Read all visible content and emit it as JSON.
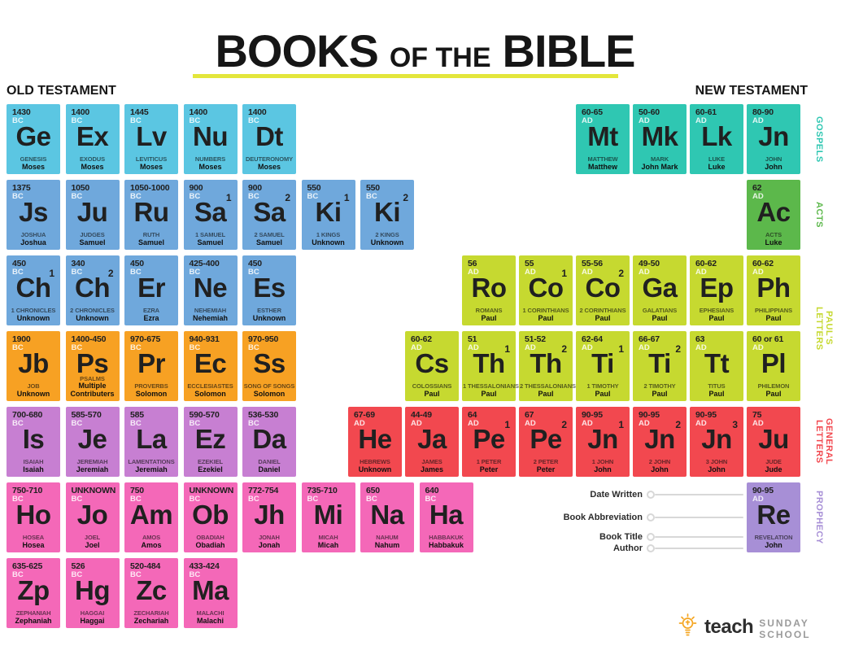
{
  "title": {
    "part1": "BOOKS",
    "part2": "OF THE",
    "part3": "BIBLE"
  },
  "headers": {
    "old": "OLD TESTAMENT",
    "new": "NEW TESTAMENT"
  },
  "palette": {
    "law_blue": "#5BC6E2",
    "history_blue": "#6FA8DC",
    "wisdom_orange": "#F7A123",
    "major_prophets_purple": "#C77FD2",
    "minor_prophets_pink": "#F468B8",
    "gospels_teal": "#2FC7B2",
    "acts_green": "#5CB84B",
    "pauls_letters_green": "#C6D930",
    "general_letters_red": "#F2484F",
    "prophecy_purple": "#A78FD6",
    "underline_yellow": "#E3E63B",
    "logo_orange": "#F5A623"
  },
  "categories": [
    {
      "lines": [
        "GOSPELS"
      ],
      "color": "gospels_teal",
      "row_start": 1,
      "row_end": 1
    },
    {
      "lines": [
        "ACTS"
      ],
      "color": "acts_green",
      "row_start": 2,
      "row_end": 2
    },
    {
      "lines": [
        "PAUL'S",
        "LETTERS"
      ],
      "color": "pauls_letters_green",
      "row_start": 3,
      "row_end": 4
    },
    {
      "lines": [
        "GENERAL",
        "LETTERS"
      ],
      "color": "general_letters_red",
      "row_start": 5,
      "row_end": 5
    },
    {
      "lines": [
        "PROPHECY"
      ],
      "color": "prophecy_purple",
      "row_start": 6,
      "row_end": 6
    }
  ],
  "tiles": [
    {
      "r": 1,
      "c": 1,
      "sec": "ot",
      "color": "law_blue",
      "date": "1430",
      "era": "BC",
      "ab": "Ge",
      "name": "GENESIS",
      "author": "Moses"
    },
    {
      "r": 1,
      "c": 2,
      "sec": "ot",
      "color": "law_blue",
      "date": "1400",
      "era": "BC",
      "ab": "Ex",
      "name": "EXODUS",
      "author": "Moses"
    },
    {
      "r": 1,
      "c": 3,
      "sec": "ot",
      "color": "law_blue",
      "date": "1445",
      "era": "BC",
      "ab": "Lv",
      "name": "LEVITICUS",
      "author": "Moses"
    },
    {
      "r": 1,
      "c": 4,
      "sec": "ot",
      "color": "law_blue",
      "date": "1400",
      "era": "BC",
      "ab": "Nu",
      "name": "NUMBERS",
      "author": "Moses"
    },
    {
      "r": 1,
      "c": 5,
      "sec": "ot",
      "color": "law_blue",
      "date": "1400",
      "era": "BC",
      "ab": "Dt",
      "name": "DEUTERONOMY",
      "author": "Moses"
    },
    {
      "r": 1,
      "c": 11,
      "sec": "nt",
      "color": "gospels_teal",
      "date": "60-65",
      "era": "AD",
      "ab": "Mt",
      "name": "MATTHEW",
      "author": "Matthew"
    },
    {
      "r": 1,
      "c": 12,
      "sec": "nt",
      "color": "gospels_teal",
      "date": "50-60",
      "era": "AD",
      "ab": "Mk",
      "name": "MARK",
      "author": "John Mark"
    },
    {
      "r": 1,
      "c": 13,
      "sec": "nt",
      "color": "gospels_teal",
      "date": "60-61",
      "era": "AD",
      "ab": "Lk",
      "name": "LUKE",
      "author": "Luke"
    },
    {
      "r": 1,
      "c": 14,
      "sec": "nt",
      "color": "gospels_teal",
      "date": "80-90",
      "era": "AD",
      "ab": "Jn",
      "name": "JOHN",
      "author": "John"
    },
    {
      "r": 2,
      "c": 1,
      "sec": "ot",
      "color": "history_blue",
      "date": "1375",
      "era": "BC",
      "ab": "Js",
      "name": "JOSHUA",
      "author": "Joshua"
    },
    {
      "r": 2,
      "c": 2,
      "sec": "ot",
      "color": "history_blue",
      "date": "1050",
      "era": "BC",
      "ab": "Ju",
      "name": "JUDGES",
      "author": "Samuel"
    },
    {
      "r": 2,
      "c": 3,
      "sec": "ot",
      "color": "history_blue",
      "date": "1050-1000",
      "era": "BC",
      "ab": "Ru",
      "name": "RUTH",
      "author": "Samuel"
    },
    {
      "r": 2,
      "c": 4,
      "sec": "ot",
      "color": "history_blue",
      "date": "900",
      "era": "BC",
      "sup": "1",
      "ab": "Sa",
      "name": "1 SAMUEL",
      "author": "Samuel"
    },
    {
      "r": 2,
      "c": 5,
      "sec": "ot",
      "color": "history_blue",
      "date": "900",
      "era": "BC",
      "sup": "2",
      "ab": "Sa",
      "name": "2 SAMUEL",
      "author": "Samuel"
    },
    {
      "r": 2,
      "c": 6,
      "sec": "ot",
      "color": "history_blue",
      "date": "550",
      "era": "BC",
      "sup": "1",
      "ab": "Ki",
      "name": "1 KINGS",
      "author": "Unknown"
    },
    {
      "r": 2,
      "c": 7,
      "sec": "ot",
      "color": "history_blue",
      "date": "550",
      "era": "BC",
      "sup": "2",
      "ab": "Ki",
      "name": "2 KINGS",
      "author": "Unknown"
    },
    {
      "r": 2,
      "c": 14,
      "sec": "nt",
      "color": "acts_green",
      "date": "62",
      "era": "AD",
      "ab": "Ac",
      "name": "ACTS",
      "author": "Luke"
    },
    {
      "r": 3,
      "c": 1,
      "sec": "ot",
      "color": "history_blue",
      "date": "450",
      "era": "BC",
      "sup": "1",
      "ab": "Ch",
      "name": "1 CHRONICLES",
      "author": "Unknown"
    },
    {
      "r": 3,
      "c": 2,
      "sec": "ot",
      "color": "history_blue",
      "date": "340",
      "era": "BC",
      "sup": "2",
      "ab": "Ch",
      "name": "2 CHRONICLES",
      "author": "Unknown"
    },
    {
      "r": 3,
      "c": 3,
      "sec": "ot",
      "color": "history_blue",
      "date": "450",
      "era": "BC",
      "ab": "Er",
      "name": "EZRA",
      "author": "Ezra"
    },
    {
      "r": 3,
      "c": 4,
      "sec": "ot",
      "color": "history_blue",
      "date": "425-400",
      "era": "BC",
      "ab": "Ne",
      "name": "NEHEMIAH",
      "author": "Nehemiah"
    },
    {
      "r": 3,
      "c": 5,
      "sec": "ot",
      "color": "history_blue",
      "date": "450",
      "era": "BC",
      "ab": "Es",
      "name": "ESTHER",
      "author": "Unknown"
    },
    {
      "r": 3,
      "c": 9,
      "sec": "nt",
      "color": "pauls_letters_green",
      "date": "56",
      "era": "AD",
      "ab": "Ro",
      "name": "ROMANS",
      "author": "Paul"
    },
    {
      "r": 3,
      "c": 10,
      "sec": "nt",
      "color": "pauls_letters_green",
      "date": "55",
      "era": "AD",
      "sup": "1",
      "ab": "Co",
      "name": "1 CORINTHIANS",
      "author": "Paul"
    },
    {
      "r": 3,
      "c": 11,
      "sec": "nt",
      "color": "pauls_letters_green",
      "date": "55-56",
      "era": "AD",
      "sup": "2",
      "ab": "Co",
      "name": "2 CORINTHIANS",
      "author": "Paul"
    },
    {
      "r": 3,
      "c": 12,
      "sec": "nt",
      "color": "pauls_letters_green",
      "date": "49-50",
      "era": "AD",
      "ab": "Ga",
      "name": "GALATIANS",
      "author": "Paul"
    },
    {
      "r": 3,
      "c": 13,
      "sec": "nt",
      "color": "pauls_letters_green",
      "date": "60-62",
      "era": "AD",
      "ab": "Ep",
      "name": "EPHESIANS",
      "author": "Paul"
    },
    {
      "r": 3,
      "c": 14,
      "sec": "nt",
      "color": "pauls_letters_green",
      "date": "60-62",
      "era": "AD",
      "ab": "Ph",
      "name": "PHILIPPIANS",
      "author": "Paul"
    },
    {
      "r": 4,
      "c": 1,
      "sec": "ot",
      "color": "wisdom_orange",
      "date": "1900",
      "era": "BC",
      "ab": "Jb",
      "name": "JOB",
      "author": "Unknown"
    },
    {
      "r": 4,
      "c": 2,
      "sec": "ot",
      "color": "wisdom_orange",
      "date": "1400-450",
      "era": "BC",
      "ab": "Ps",
      "name": "PSALMS",
      "author": "Multiple Contributers"
    },
    {
      "r": 4,
      "c": 3,
      "sec": "ot",
      "color": "wisdom_orange",
      "date": "970-675",
      "era": "BC",
      "ab": "Pr",
      "name": "PROVERBS",
      "author": "Solomon"
    },
    {
      "r": 4,
      "c": 4,
      "sec": "ot",
      "color": "wisdom_orange",
      "date": "940-931",
      "era": "BC",
      "ab": "Ec",
      "name": "ECCLESIASTES",
      "author": "Solomon"
    },
    {
      "r": 4,
      "c": 5,
      "sec": "ot",
      "color": "wisdom_orange",
      "date": "970-950",
      "era": "BC",
      "ab": "Ss",
      "name": "SONG OF SONGS",
      "author": "Solomon"
    },
    {
      "r": 4,
      "c": 8,
      "sec": "nt",
      "color": "pauls_letters_green",
      "date": "60-62",
      "era": "AD",
      "ab": "Cs",
      "name": "COLOSSIANS",
      "author": "Paul"
    },
    {
      "r": 4,
      "c": 9,
      "sec": "nt",
      "color": "pauls_letters_green",
      "date": "51",
      "era": "AD",
      "sup": "1",
      "ab": "Th",
      "name": "1 THESSALONIANS",
      "author": "Paul"
    },
    {
      "r": 4,
      "c": 10,
      "sec": "nt",
      "color": "pauls_letters_green",
      "date": "51-52",
      "era": "AD",
      "sup": "2",
      "ab": "Th",
      "name": "2 THESSALONIANS",
      "author": "Paul"
    },
    {
      "r": 4,
      "c": 11,
      "sec": "nt",
      "color": "pauls_letters_green",
      "date": "62-64",
      "era": "AD",
      "sup": "1",
      "ab": "Ti",
      "name": "1 TIMOTHY",
      "author": "Paul"
    },
    {
      "r": 4,
      "c": 12,
      "sec": "nt",
      "color": "pauls_letters_green",
      "date": "66-67",
      "era": "AD",
      "sup": "2",
      "ab": "Ti",
      "name": "2 TIMOTHY",
      "author": "Paul"
    },
    {
      "r": 4,
      "c": 13,
      "sec": "nt",
      "color": "pauls_letters_green",
      "date": "63",
      "era": "AD",
      "ab": "Tt",
      "name": "TITUS",
      "author": "Paul"
    },
    {
      "r": 4,
      "c": 14,
      "sec": "nt",
      "color": "pauls_letters_green",
      "date": "60 or 61",
      "era": "AD",
      "ab": "Pl",
      "name": "PHILEMON",
      "author": "Paul"
    },
    {
      "r": 5,
      "c": 1,
      "sec": "ot",
      "color": "major_prophets_purple",
      "date": "700-680",
      "era": "BC",
      "ab": "Is",
      "name": "ISAIAH",
      "author": "Isaiah"
    },
    {
      "r": 5,
      "c": 2,
      "sec": "ot",
      "color": "major_prophets_purple",
      "date": "585-570",
      "era": "BC",
      "ab": "Je",
      "name": "JEREMIAH",
      "author": "Jeremiah"
    },
    {
      "r": 5,
      "c": 3,
      "sec": "ot",
      "color": "major_prophets_purple",
      "date": "585",
      "era": "BC",
      "ab": "La",
      "name": "LAMENTATIONS",
      "author": "Jeremiah"
    },
    {
      "r": 5,
      "c": 4,
      "sec": "ot",
      "color": "major_prophets_purple",
      "date": "590-570",
      "era": "BC",
      "ab": "Ez",
      "name": "EZEKIEL",
      "author": "Ezekiel"
    },
    {
      "r": 5,
      "c": 5,
      "sec": "ot",
      "color": "major_prophets_purple",
      "date": "536-530",
      "era": "BC",
      "ab": "Da",
      "name": "DANIEL",
      "author": "Daniel"
    },
    {
      "r": 5,
      "c": 7,
      "sec": "nt",
      "color": "general_letters_red",
      "date": "67-69",
      "era": "AD",
      "ab": "He",
      "name": "HEBREWS",
      "author": "Unknown"
    },
    {
      "r": 5,
      "c": 8,
      "sec": "nt",
      "color": "general_letters_red",
      "date": "44-49",
      "era": "AD",
      "ab": "Ja",
      "name": "JAMES",
      "author": "James"
    },
    {
      "r": 5,
      "c": 9,
      "sec": "nt",
      "color": "general_letters_red",
      "date": "64",
      "era": "AD",
      "sup": "1",
      "ab": "Pe",
      "name": "1 PETER",
      "author": "Peter"
    },
    {
      "r": 5,
      "c": 10,
      "sec": "nt",
      "color": "general_letters_red",
      "date": "67",
      "era": "AD",
      "sup": "2",
      "ab": "Pe",
      "name": "2 PETER",
      "author": "Peter"
    },
    {
      "r": 5,
      "c": 11,
      "sec": "nt",
      "color": "general_letters_red",
      "date": "90-95",
      "era": "AD",
      "sup": "1",
      "ab": "Jn",
      "name": "1 JOHN",
      "author": "John"
    },
    {
      "r": 5,
      "c": 12,
      "sec": "nt",
      "color": "general_letters_red",
      "date": "90-95",
      "era": "AD",
      "sup": "2",
      "ab": "Jn",
      "name": "2 JOHN",
      "author": "John"
    },
    {
      "r": 5,
      "c": 13,
      "sec": "nt",
      "color": "general_letters_red",
      "date": "90-95",
      "era": "AD",
      "sup": "3",
      "ab": "Jn",
      "name": "3 JOHN",
      "author": "John"
    },
    {
      "r": 5,
      "c": 14,
      "sec": "nt",
      "color": "general_letters_red",
      "date": "75",
      "era": "AD",
      "ab": "Ju",
      "name": "JUDE",
      "author": "Jude"
    },
    {
      "r": 6,
      "c": 1,
      "sec": "ot",
      "color": "minor_prophets_pink",
      "date": "750-710",
      "era": "BC",
      "ab": "Ho",
      "name": "HOSEA",
      "author": "Hosea"
    },
    {
      "r": 6,
      "c": 2,
      "sec": "ot",
      "color": "minor_prophets_pink",
      "date": "UNKNOWN",
      "era": "BC",
      "ab": "Jo",
      "name": "JOEL",
      "author": "Joel"
    },
    {
      "r": 6,
      "c": 3,
      "sec": "ot",
      "color": "minor_prophets_pink",
      "date": "750",
      "era": "BC",
      "ab": "Am",
      "name": "AMOS",
      "author": "Amos"
    },
    {
      "r": 6,
      "c": 4,
      "sec": "ot",
      "color": "minor_prophets_pink",
      "date": "UNKNOWN",
      "era": "BC",
      "ab": "Ob",
      "name": "OBADIAH",
      "author": "Obadiah"
    },
    {
      "r": 6,
      "c": 5,
      "sec": "ot",
      "color": "minor_prophets_pink",
      "date": "772-754",
      "era": "BC",
      "ab": "Jh",
      "name": "JONAH",
      "author": "Jonah"
    },
    {
      "r": 6,
      "c": 6,
      "sec": "ot",
      "color": "minor_prophets_pink",
      "date": "735-710",
      "era": "BC",
      "ab": "Mi",
      "name": "MICAH",
      "author": "Micah"
    },
    {
      "r": 6,
      "c": 7,
      "sec": "ot",
      "color": "minor_prophets_pink",
      "date": "650",
      "era": "BC",
      "ab": "Na",
      "name": "NAHUM",
      "author": "Nahum"
    },
    {
      "r": 6,
      "c": 8,
      "sec": "ot",
      "color": "minor_prophets_pink",
      "date": "640",
      "era": "BC",
      "ab": "Ha",
      "name": "HABBAKUK",
      "author": "Habbakuk"
    },
    {
      "r": 6,
      "c": 14,
      "sec": "nt",
      "color": "prophecy_purple",
      "date": "90-95",
      "era": "AD",
      "ab": "Re",
      "name": "REVELATION",
      "author": "John"
    },
    {
      "r": 7,
      "c": 1,
      "sec": "ot",
      "color": "minor_prophets_pink",
      "date": "635-625",
      "era": "BC",
      "ab": "Zp",
      "name": "ZEPHANIAH",
      "author": "Zephaniah"
    },
    {
      "r": 7,
      "c": 2,
      "sec": "ot",
      "color": "minor_prophets_pink",
      "date": "526",
      "era": "BC",
      "ab": "Hg",
      "name": "HAGGAI",
      "author": "Haggai"
    },
    {
      "r": 7,
      "c": 3,
      "sec": "ot",
      "color": "minor_prophets_pink",
      "date": "520-484",
      "era": "BC",
      "ab": "Zc",
      "name": "ZECHARIAH",
      "author": "Zechariah"
    },
    {
      "r": 7,
      "c": 4,
      "sec": "ot",
      "color": "minor_prophets_pink",
      "date": "433-424",
      "era": "BC",
      "ab": "Ma",
      "name": "MALACHI",
      "author": "Malachi"
    }
  ],
  "legend": {
    "items": [
      "Date Written",
      "Book Abbreviation",
      "Book Title",
      "Author"
    ]
  },
  "logo": {
    "brand": "teach",
    "suffix": "SUNDAY SCHOOL"
  }
}
